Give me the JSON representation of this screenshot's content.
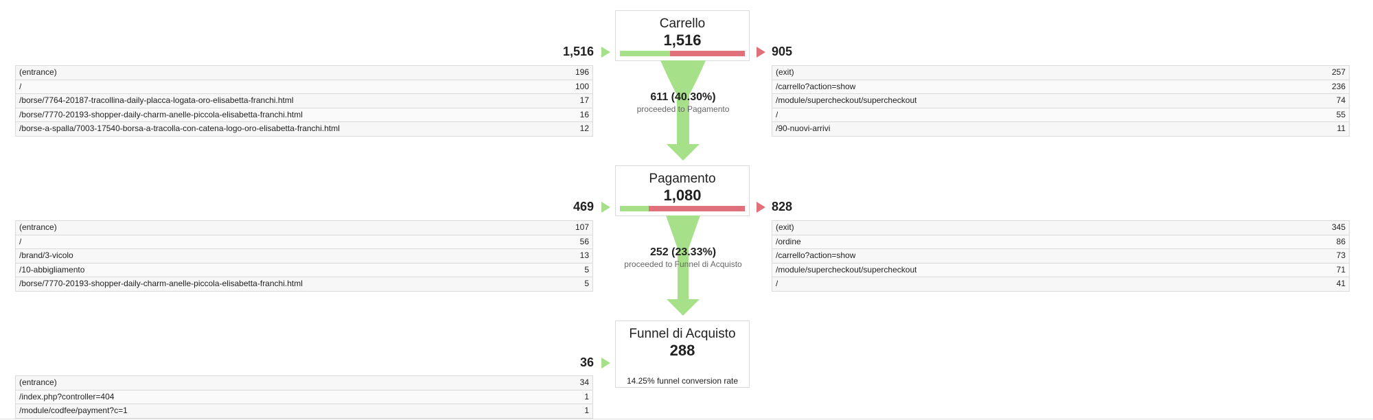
{
  "chart_data": {
    "type": "funnel",
    "steps": [
      {
        "name": "Carrello",
        "value": "1,516",
        "value_num": 1516,
        "entries": "1,516",
        "exits": "905",
        "proceeded_fraction": 0.403,
        "entrances": [
          {
            "page": "(entrance)",
            "count": "196"
          },
          {
            "page": "/",
            "count": "100"
          },
          {
            "page": "/borse/7764-20187-tracollina-daily-placca-logata-oro-elisabetta-franchi.html",
            "count": "17"
          },
          {
            "page": "/borse/7770-20193-shopper-daily-charm-anelle-piccola-elisabetta-franchi.html",
            "count": "16"
          },
          {
            "page": "/borse-a-spalla/7003-17540-borsa-a-tracolla-con-catena-logo-oro-elisabetta-franchi.html",
            "count": "12"
          }
        ],
        "exit_pages": [
          {
            "page": "(exit)",
            "count": "257"
          },
          {
            "page": "/carrello?action=show",
            "count": "236"
          },
          {
            "page": "/module/supercheckout/supercheckout",
            "count": "74"
          },
          {
            "page": "/",
            "count": "55"
          },
          {
            "page": "/90-nuovi-arrivi",
            "count": "11"
          }
        ]
      },
      {
        "name": "Pagamento",
        "value": "1,080",
        "value_num": 1080,
        "entries": "469",
        "exits": "828",
        "proceeded_fraction": 0.2333,
        "entrances": [
          {
            "page": "(entrance)",
            "count": "107"
          },
          {
            "page": "/",
            "count": "56"
          },
          {
            "page": "/brand/3-vicolo",
            "count": "13"
          },
          {
            "page": "/10-abbigliamento",
            "count": "5"
          },
          {
            "page": "/borse/7770-20193-shopper-daily-charm-anelle-piccola-elisabetta-franchi.html",
            "count": "5"
          }
        ],
        "exit_pages": [
          {
            "page": "(exit)",
            "count": "345"
          },
          {
            "page": "/ordine",
            "count": "86"
          },
          {
            "page": "/carrello?action=show",
            "count": "73"
          },
          {
            "page": "/module/supercheckout/supercheckout",
            "count": "71"
          },
          {
            "page": "/",
            "count": "41"
          }
        ]
      },
      {
        "name": "Funnel di Acquisto",
        "value": "288",
        "value_num": 288,
        "entries": "36",
        "conversion_text": "14.25% funnel conversion rate",
        "entrances": [
          {
            "page": "(entrance)",
            "count": "34"
          },
          {
            "page": "/index.php?controller=404",
            "count": "1"
          },
          {
            "page": "/module/codfee/payment?c=1",
            "count": "1"
          }
        ]
      }
    ],
    "flows": [
      {
        "value": "611 (40.30%)",
        "label": "proceeded to Pagamento"
      },
      {
        "value": "252 (23.33%)",
        "label": "proceeded to Funnel di Acquisto"
      }
    ]
  },
  "colors": {
    "proceed": "#a6e088",
    "exit": "#e0707a",
    "border": "#dadada"
  }
}
